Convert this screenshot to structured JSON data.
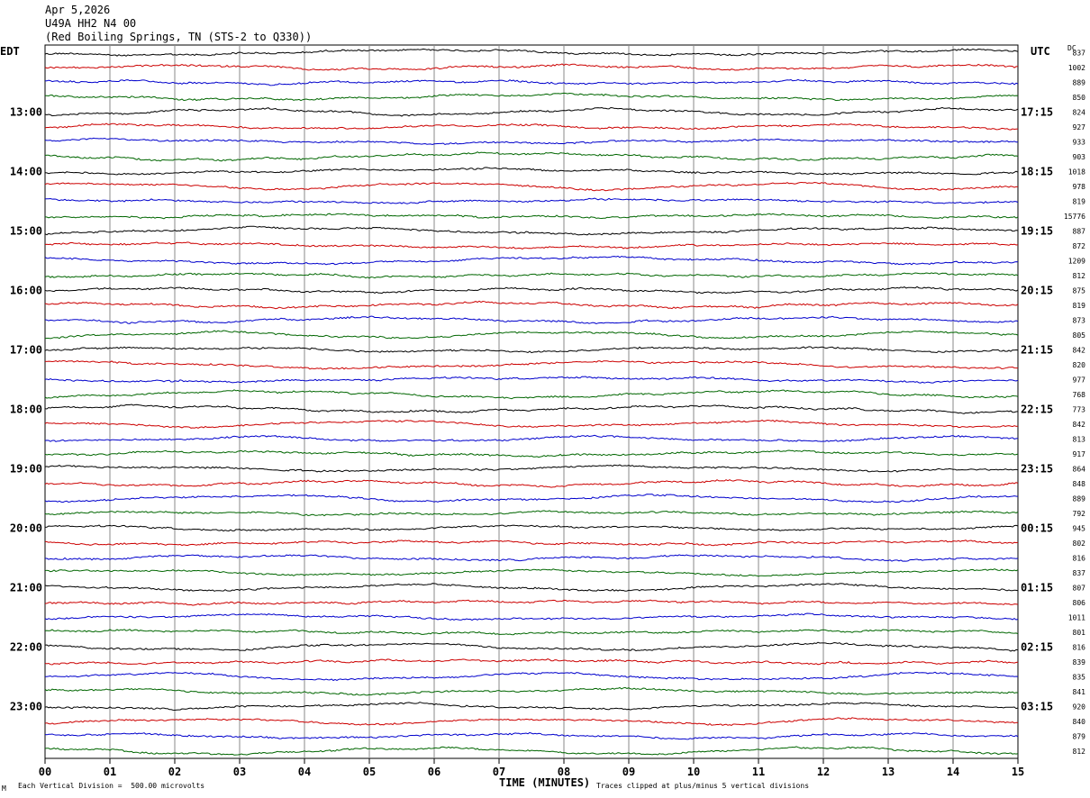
{
  "header": {
    "date": "Apr 5,2026",
    "station": "U49A HH2 N4 00",
    "location": "(Red Boiling Springs, TN (STS-2 to Q330))"
  },
  "left_axis_label": "EDT",
  "right_axis_label": "UTC",
  "dc_label": "DC",
  "footer": {
    "scale": "Each Vertical Division =  500.00 microvolts",
    "clip_note": "Traces clipped at plus/minus 5 vertical divisions",
    "corner_mark": "M"
  },
  "chart_data": {
    "type": "line",
    "title": "",
    "xlabel": "TIME (MINUTES)",
    "xlim": [
      0,
      15
    ],
    "x_ticks": [
      "00",
      "01",
      "02",
      "03",
      "04",
      "05",
      "06",
      "07",
      "08",
      "09",
      "10",
      "11",
      "12",
      "13",
      "14",
      "15"
    ],
    "rows": 48,
    "row_minutes": 15,
    "trace_colors": [
      "#000000",
      "#cc0000",
      "#0000cc",
      "#006600"
    ],
    "left_time_labels": [
      {
        "row": 4,
        "text": "13:00"
      },
      {
        "row": 8,
        "text": "14:00"
      },
      {
        "row": 12,
        "text": "15:00"
      },
      {
        "row": 16,
        "text": "16:00"
      },
      {
        "row": 20,
        "text": "17:00"
      },
      {
        "row": 24,
        "text": "18:00"
      },
      {
        "row": 28,
        "text": "19:00"
      },
      {
        "row": 32,
        "text": "20:00"
      },
      {
        "row": 36,
        "text": "21:00"
      },
      {
        "row": 40,
        "text": "22:00"
      },
      {
        "row": 44,
        "text": "23:00"
      }
    ],
    "right_time_labels": [
      {
        "row": 4,
        "text": "17:15"
      },
      {
        "row": 8,
        "text": "18:15"
      },
      {
        "row": 12,
        "text": "19:15"
      },
      {
        "row": 16,
        "text": "20:15"
      },
      {
        "row": 20,
        "text": "21:15"
      },
      {
        "row": 24,
        "text": "22:15"
      },
      {
        "row": 28,
        "text": "23:15"
      },
      {
        "row": 32,
        "text": "00:15"
      },
      {
        "row": 36,
        "text": "01:15"
      },
      {
        "row": 40,
        "text": "02:15"
      },
      {
        "row": 44,
        "text": "03:15"
      }
    ],
    "dc_offsets": [
      "837",
      "1002",
      "889",
      "850",
      "824",
      "927",
      "933",
      "903",
      "1018",
      "978",
      "819",
      "15776",
      "887",
      "872",
      "1209",
      "812",
      "875",
      "819",
      "873",
      "805",
      "842",
      "820",
      "977",
      "768",
      "773",
      "842",
      "813",
      "917",
      "864",
      "848",
      "889",
      "792",
      "945",
      "802",
      "816",
      "837",
      "807",
      "806",
      "1011",
      "801",
      "816",
      "839",
      "835",
      "841",
      "920",
      "840",
      "879",
      "812"
    ]
  }
}
